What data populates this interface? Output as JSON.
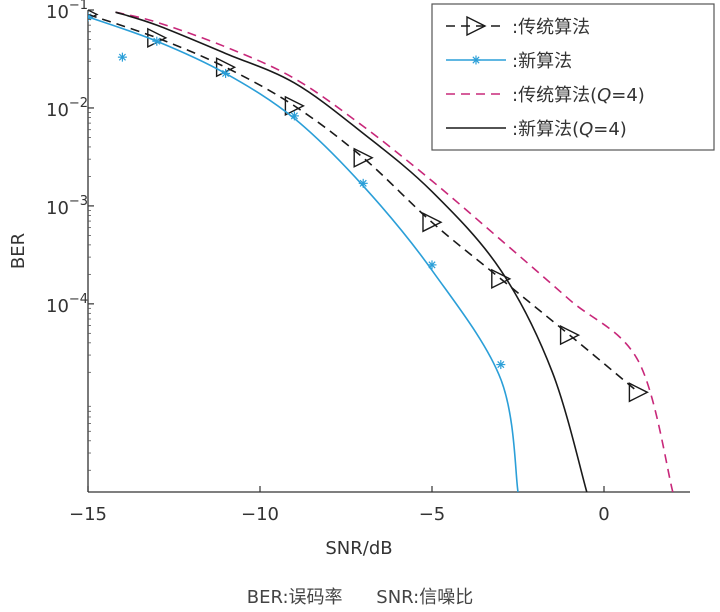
{
  "chart_data": {
    "type": "line",
    "title": "",
    "xlabel": "SNR/dB",
    "ylabel": "BER",
    "xlim": [
      -15,
      2.5
    ],
    "ylim": [
      1.2e-06,
      0.1
    ],
    "yscale": "log",
    "x_ticks": [
      -15,
      -10,
      -5,
      0
    ],
    "x_tick_labels": [
      "−15",
      "−10",
      "−5",
      "0"
    ],
    "y_ticks": [
      0.1,
      0.01,
      0.001,
      0.0001
    ],
    "y_tick_labels": [
      {
        "base": "10",
        "exp": "−1"
      },
      {
        "base": "10",
        "exp": "−2"
      },
      {
        "base": "10",
        "exp": "−3"
      },
      {
        "base": "10",
        "exp": "−4"
      }
    ],
    "grid": false,
    "legend_position": "top-right",
    "series": [
      {
        "name": "传统算法",
        "legend_label": ":传统算法",
        "color": "#1a1a1a",
        "line": "dashed",
        "marker": "triangle-right",
        "x": [
          -15,
          -13,
          -11,
          -9,
          -7,
          -5,
          -3,
          -1,
          1
        ],
        "y": [
          0.09,
          0.052,
          0.026,
          0.0105,
          0.0031,
          0.00068,
          0.00018,
          4.8e-05,
          1.25e-05
        ]
      },
      {
        "name": "新算法",
        "legend_label": ":新算法",
        "color": "#2b9fd8",
        "line": "solid",
        "marker": "asterisk",
        "x": [
          -15,
          -13,
          -11,
          -9,
          -7,
          -5,
          -3,
          -2.5
        ],
        "y": [
          0.085,
          0.048,
          0.0225,
          0.0078,
          0.0016,
          0.00022,
          1.7e-05,
          1.2e-06
        ],
        "marker_points": [
          {
            "x": -15,
            "y": 0.085
          },
          {
            "x": -14,
            "y": 0.033
          },
          {
            "x": -13,
            "y": 0.048
          },
          {
            "x": -11,
            "y": 0.0225
          },
          {
            "x": -9,
            "y": 0.0083
          },
          {
            "x": -7,
            "y": 0.0017
          },
          {
            "x": -5,
            "y": 0.00025
          },
          {
            "x": -3,
            "y": 2.4e-05
          }
        ]
      },
      {
        "name": "传统算法(Q=4)",
        "legend_label": ":传统算法(",
        "legend_italic": "Q",
        "legend_tail": "=4)",
        "color": "#c8287a",
        "line": "dashed",
        "marker": "none",
        "x": [
          -14.2,
          -13,
          -11,
          -9,
          -7,
          -5,
          -3,
          -1,
          1,
          2
        ],
        "y": [
          0.095,
          0.075,
          0.042,
          0.02,
          0.0065,
          0.0018,
          0.00045,
          0.00011,
          2.6e-05,
          1.2e-06
        ]
      },
      {
        "name": "新算法(Q=4)",
        "legend_label": ":新算法(",
        "legend_italic": "Q",
        "legend_tail": "=4)",
        "color": "#1a1a1a",
        "line": "solid",
        "marker": "none",
        "x": [
          -14.2,
          -13,
          -11,
          -9,
          -7,
          -5,
          -3,
          -1.5,
          -0.5
        ],
        "y": [
          0.095,
          0.07,
          0.036,
          0.018,
          0.0055,
          0.0014,
          0.00022,
          2e-05,
          1.2e-06
        ]
      }
    ]
  },
  "caption": {
    "left": "BER:误码率",
    "right": "SNR:信噪比"
  }
}
